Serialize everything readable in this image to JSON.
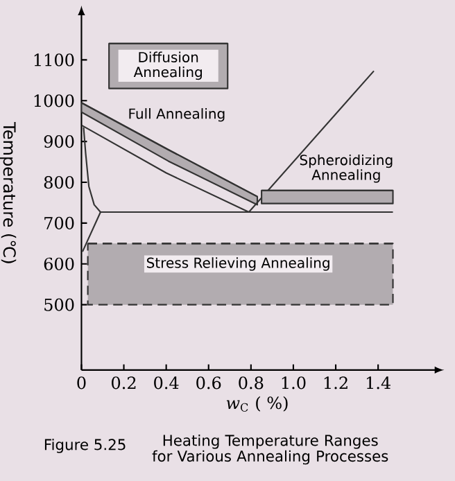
{
  "chart_data": {
    "type": "line",
    "title": "Heating Temperature Ranges for Various Annealing Processes",
    "xlabel": "*w*$_{C}$ ( %)",
    "ylabel": "Temperature (℃)",
    "annotations": [
      "Figure 5.25",
      "Diffusion Annealing",
      "Full Annealing",
      {
        "text": "Spheroidizing Annealing",
        "x": 1.25,
        "y": 780
      },
      "Stress Relieving Annealing"
    ],
    "xlim": [
      0,
      1.66
    ],
    "ylim": [
      340,
      1206
    ],
    "xticks": [
      0,
      0.2,
      0.4,
      0.6,
      0.8,
      {
        "value": 1,
        "label": "1.0"
      },
      1.2,
      1.4
    ],
    "yticks": [
      500,
      600,
      700,
      800,
      900,
      1000,
      1100
    ],
    "grid": false,
    "marker": "none",
    "series": [
      {
        "type": "line",
        "color": "#333333",
        "x": [
          0.13,
          0.69
        ],
        "values": [
          1140,
          1140
        ],
        "lower": [
          1030,
          1030
        ],
        "upper": [
          1140,
          1140
        ]
      },
      {
        "type": "line",
        "color": "#333333",
        "x": [
          0,
          0.4,
          0.79
        ],
        "values": [
          940,
          823,
          727
        ]
      },
      {
        "type": "line",
        "color": "#333333",
        "x": [
          0,
          0.41,
          0.83
        ],
        "values": [
          995,
          880,
          765
        ],
        "lower": [
          972,
          852,
          745
        ],
        "upper": [
          995,
          880,
          765
        ]
      },
      {
        "type": "line",
        "color": "#333333",
        "x": [
          0.01,
          0.02,
          0.035,
          0.06,
          0.09
        ],
        "values": [
          935,
          870,
          790,
          745,
          727
        ]
      },
      {
        "type": "line",
        "color": "#333333",
        "x": [
          0.005,
          0.09
        ],
        "values": [
          630,
          727
        ]
      },
      {
        "type": "line",
        "color": "#333333",
        "x": [
          0.09,
          1.47
        ],
        "values": [
          727,
          727
        ]
      },
      {
        "type": "line",
        "color": "#333333",
        "x": [
          0.79,
          1.38
        ],
        "values": [
          727,
          1073
        ]
      },
      {
        "type": "line",
        "color": "#333333",
        "x": [
          0.85,
          1.15,
          1.47
        ],
        "values": [
          780,
          780,
          780
        ],
        "lower": [
          748,
          748,
          748
        ],
        "upper": [
          780,
          780,
          780
        ]
      },
      {
        "type": "line",
        "color": "#333333",
        "x": [
          0.03,
          1.47
        ],
        "values": [
          650,
          650
        ],
        "lower": [
          500,
          500
        ],
        "upper": [
          650,
          650
        ],
        "line_style": "dashed"
      }
    ]
  }
}
